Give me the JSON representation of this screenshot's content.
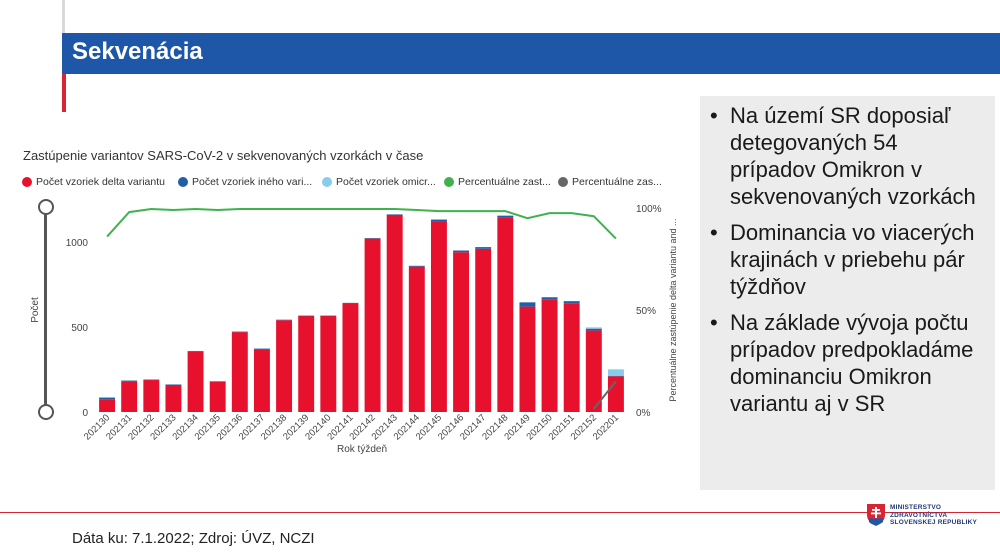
{
  "header": {
    "title": "Sekvenácia"
  },
  "chart_data": {
    "type": "bar",
    "title": "Zastúpenie variantov SARS-CoV-2 v sekvenovaných vzorkách v čase",
    "xlabel": "Rok týždeň",
    "ylabel": "Počet",
    "y2label": "Percentuálne zastúpenie delta variantu and ...",
    "ylim": [
      0,
      1200
    ],
    "y2lim": [
      0,
      100
    ],
    "yticks": [
      "0",
      "500",
      "1000"
    ],
    "y2ticks": [
      "0%",
      "50%",
      "100%"
    ],
    "categories": [
      "202130",
      "202131",
      "202132",
      "202133",
      "202134",
      "202135",
      "202136",
      "202137",
      "202138",
      "202139",
      "202140",
      "202141",
      "202142",
      "202143",
      "202144",
      "202145",
      "202146",
      "202147",
      "202148",
      "202149",
      "202150",
      "202151",
      "202152",
      "202201"
    ],
    "legend": [
      {
        "label": "Počet vzoriek delta variantu",
        "color": "#e8112d"
      },
      {
        "label": "Počet vzoriek iného vari...",
        "color": "#1f5fa8"
      },
      {
        "label": "Počet vzoriek omicr...",
        "color": "#89cce9"
      },
      {
        "label": "Percentuálne zast...",
        "color": "#3fb24d"
      },
      {
        "label": "Percentuálne zas...",
        "color": "#666666"
      }
    ],
    "series": [
      {
        "name": "Počet vzoriek delta variantu",
        "color": "#e8112d",
        "values": [
          75,
          180,
          188,
          160,
          355,
          178,
          470,
          370,
          540,
          565,
          565,
          640,
          1020,
          1160,
          855,
          1120,
          940,
          960,
          1145,
          620,
          660,
          640,
          480,
          210
        ]
      },
      {
        "name": "Počet vzoriek iného variantu",
        "color": "#1f5fa8",
        "values": [
          10,
          5,
          3,
          2,
          4,
          3,
          3,
          3,
          3,
          2,
          2,
          2,
          3,
          3,
          5,
          12,
          10,
          10,
          10,
          25,
          15,
          12,
          10,
          3
        ]
      },
      {
        "name": "Počet vzoriek omicron variantu",
        "color": "#89cce9",
        "values": [
          0,
          0,
          0,
          0,
          0,
          0,
          0,
          0,
          0,
          0,
          0,
          0,
          0,
          0,
          0,
          0,
          0,
          0,
          0,
          0,
          0,
          0,
          8,
          38
        ]
      },
      {
        "name": "Percentuálne zastúpenie delta variantu",
        "color": "#3fb24d",
        "values": [
          86,
          98,
          99.5,
          99,
          99.5,
          99,
          99.5,
          99.5,
          99.5,
          99.5,
          99.5,
          99.5,
          99.5,
          99.5,
          99,
          98.5,
          98.5,
          98.5,
          98.5,
          95,
          97.5,
          97.5,
          96,
          85
        ]
      },
      {
        "name": "Percentuálne zastúpenie omicron variantu",
        "color": "#666666",
        "values": [
          null,
          null,
          null,
          null,
          null,
          null,
          null,
          null,
          null,
          null,
          null,
          null,
          null,
          null,
          null,
          null,
          null,
          null,
          null,
          null,
          null,
          null,
          1.5,
          15
        ]
      }
    ]
  },
  "panel": {
    "bullets": [
      "Na území SR doposiaľ detegovaných 54 prípadov Omikron v sekvenovaných vzorkách",
      "Dominancia vo viacerých krajinách v priebehu pár týždňov",
      "Na základe vývoja počtu prípadov predpokladáme dominanciu Omikron variantu aj v SR"
    ],
    "bullet_symbol": "•"
  },
  "footer": {
    "source": "Dáta ku: 7.1.2022; Zdroj: ÚVZ, NCZI"
  },
  "logo": {
    "lines": [
      "MINISTERSTVO",
      "ZDRAVOTNÍCTVA",
      "SLOVENSKEJ REPUBLIKY"
    ]
  }
}
